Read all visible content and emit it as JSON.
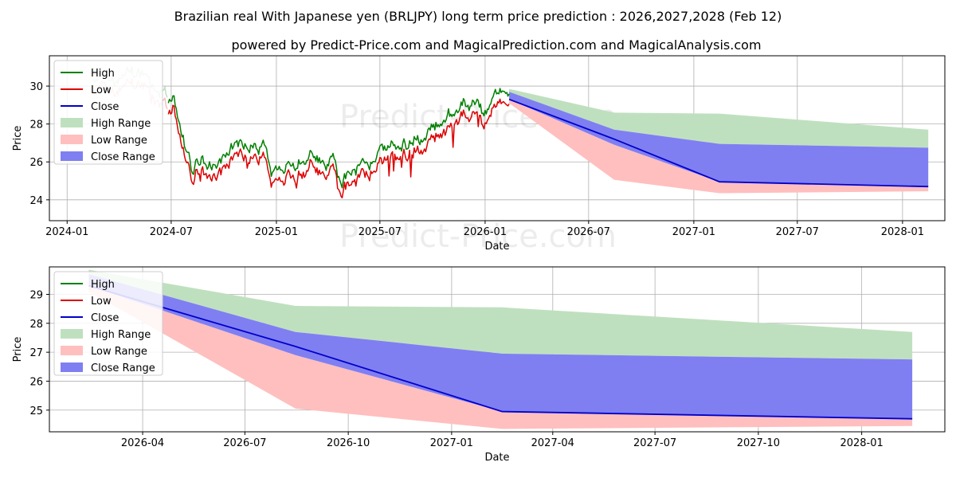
{
  "title": "Brazilian real With Japanese yen (BRLJPY) long term price prediction : 2026,2027,2028 (Feb 12)",
  "subtitle": "powered by Predict-Price.com and MagicalPrediction.com and MagicalAnalysis.com",
  "watermark": "Predict-Price.com",
  "colors": {
    "high": "#008000",
    "low": "#dd0000",
    "close": "#0000cc",
    "high_range": "#bfe0bf",
    "low_range": "#ffbfbf",
    "close_range": "#7f7ff2"
  },
  "legend": {
    "high": "High",
    "low": "Low",
    "close": "Close",
    "high_range": "High Range",
    "low_range": "Low Range",
    "close_range": "Close Range"
  },
  "chart_data": [
    {
      "type": "line",
      "panel": "top",
      "xlabel": "Date",
      "ylabel": "Price",
      "x_range": [
        "2023-12-01",
        "2028-03-15"
      ],
      "ylim": [
        22.9,
        31.6
      ],
      "x_ticks": [
        {
          "date": "2024-01-01",
          "label": "2024-01"
        },
        {
          "date": "2024-07-01",
          "label": "2024-07"
        },
        {
          "date": "2025-01-01",
          "label": "2025-01"
        },
        {
          "date": "2025-07-01",
          "label": "2025-07"
        },
        {
          "date": "2026-01-01",
          "label": "2026-01"
        },
        {
          "date": "2026-07-01",
          "label": "2026-07"
        },
        {
          "date": "2027-01-01",
          "label": "2027-01"
        },
        {
          "date": "2027-07-01",
          "label": "2027-07"
        },
        {
          "date": "2028-01-01",
          "label": "2028-01"
        }
      ],
      "y_ticks": [
        24,
        26,
        28,
        30
      ],
      "history_keypoints": [
        [
          "2024-02-15",
          29.8
        ],
        [
          "2024-03-10",
          30.3
        ],
        [
          "2024-04-01",
          29.9
        ],
        [
          "2024-04-20",
          30.6
        ],
        [
          "2024-05-15",
          30.3
        ],
        [
          "2024-06-10",
          29.4
        ],
        [
          "2024-06-25",
          29.2
        ],
        [
          "2024-07-05",
          29.0
        ],
        [
          "2024-07-20",
          27.0
        ],
        [
          "2024-08-05",
          25.5
        ],
        [
          "2024-08-25",
          26.0
        ],
        [
          "2024-09-15",
          25.3
        ],
        [
          "2024-10-05",
          26.3
        ],
        [
          "2024-10-25",
          26.7
        ],
        [
          "2024-11-20",
          26.4
        ],
        [
          "2024-12-10",
          26.5
        ],
        [
          "2024-12-22",
          24.9
        ],
        [
          "2025-01-05",
          25.0
        ],
        [
          "2025-01-25",
          25.5
        ],
        [
          "2025-02-15",
          25.7
        ],
        [
          "2025-03-05",
          26.2
        ],
        [
          "2025-03-25",
          25.5
        ],
        [
          "2025-04-10",
          25.8
        ],
        [
          "2025-04-22",
          24.5
        ],
        [
          "2025-05-10",
          25.2
        ],
        [
          "2025-06-10",
          25.6
        ],
        [
          "2025-07-01",
          26.2
        ],
        [
          "2025-08-10",
          26.7
        ],
        [
          "2025-09-20",
          27.2
        ],
        [
          "2025-10-15",
          27.6
        ],
        [
          "2025-11-10",
          28.4
        ],
        [
          "2025-11-25",
          29.1
        ],
        [
          "2025-12-15",
          28.6
        ],
        [
          "2025-12-28",
          28.3
        ],
        [
          "2026-01-20",
          29.3
        ],
        [
          "2026-02-05",
          29.6
        ],
        [
          "2026-02-12",
          29.6
        ]
      ],
      "forecast": {
        "dates": [
          "2026-02-12",
          "2026-08-15",
          "2027-02-15",
          "2028-02-15"
        ],
        "high_upper": [
          29.85,
          28.6,
          28.55,
          27.7
        ],
        "close_upper": [
          29.7,
          27.7,
          26.95,
          26.75
        ],
        "close_lower": [
          29.3,
          26.9,
          24.95,
          24.7
        ],
        "low_lower": [
          29.1,
          25.05,
          24.35,
          24.45
        ],
        "close": [
          29.3,
          27.2,
          24.95,
          24.7
        ]
      }
    },
    {
      "type": "area",
      "panel": "bottom",
      "xlabel": "Date",
      "ylabel": "Price",
      "x_range": [
        "2026-01-08",
        "2028-03-15"
      ],
      "ylim": [
        24.25,
        29.95
      ],
      "x_ticks": [
        {
          "date": "2026-04-01",
          "label": "2026-04"
        },
        {
          "date": "2026-07-01",
          "label": "2026-07"
        },
        {
          "date": "2026-10-01",
          "label": "2026-10"
        },
        {
          "date": "2027-01-01",
          "label": "2027-01"
        },
        {
          "date": "2027-04-01",
          "label": "2027-04"
        },
        {
          "date": "2027-07-01",
          "label": "2027-07"
        },
        {
          "date": "2027-10-01",
          "label": "2027-10"
        },
        {
          "date": "2028-01-01",
          "label": "2028-01"
        }
      ],
      "y_ticks": [
        25,
        26,
        27,
        28,
        29
      ],
      "forecast": {
        "dates": [
          "2026-02-12",
          "2026-08-15",
          "2027-02-15",
          "2028-02-15"
        ],
        "high_upper": [
          29.85,
          28.6,
          28.55,
          27.7
        ],
        "close_upper": [
          29.7,
          27.7,
          26.95,
          26.75
        ],
        "close_lower": [
          29.3,
          26.9,
          24.95,
          24.7
        ],
        "low_lower": [
          29.1,
          25.05,
          24.35,
          24.45
        ],
        "close": [
          29.3,
          27.2,
          24.95,
          24.7
        ]
      }
    }
  ]
}
